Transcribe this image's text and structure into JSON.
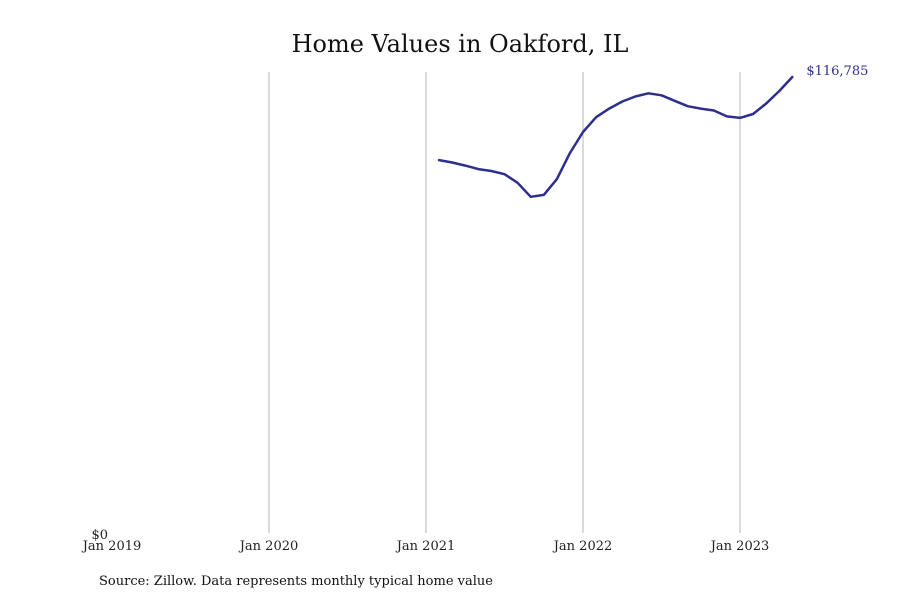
{
  "chart_data": {
    "type": "line",
    "title": "Home Values in Oakford, IL",
    "xlabel": "",
    "ylabel": "",
    "x_ticks": [
      "Jan 2019",
      "Jan 2020",
      "Jan 2021",
      "Jan 2022",
      "Jan 2023"
    ],
    "y_ticks": [
      "$0"
    ],
    "ylim": [
      0,
      116785
    ],
    "grid": "vertical",
    "series": [
      {
        "color": "#2e2e8f",
        "end_label": "$116,785",
        "points": [
          {
            "x": "2021-02",
            "y": 95500
          },
          {
            "x": "2021-03",
            "y": 94900
          },
          {
            "x": "2021-04",
            "y": 94100
          },
          {
            "x": "2021-05",
            "y": 93200
          },
          {
            "x": "2021-06",
            "y": 92700
          },
          {
            "x": "2021-07",
            "y": 91900
          },
          {
            "x": "2021-08",
            "y": 89700
          },
          {
            "x": "2021-09",
            "y": 86100
          },
          {
            "x": "2021-10",
            "y": 86600
          },
          {
            "x": "2021-11",
            "y": 90600
          },
          {
            "x": "2021-12",
            "y": 97300
          },
          {
            "x": "2022-01",
            "y": 102700
          },
          {
            "x": "2022-02",
            "y": 106500
          },
          {
            "x": "2022-03",
            "y": 108700
          },
          {
            "x": "2022-04",
            "y": 110500
          },
          {
            "x": "2022-05",
            "y": 111800
          },
          {
            "x": "2022-06",
            "y": 112600
          },
          {
            "x": "2022-07",
            "y": 112100
          },
          {
            "x": "2022-08",
            "y": 110700
          },
          {
            "x": "2022-09",
            "y": 109300
          },
          {
            "x": "2022-10",
            "y": 108700
          },
          {
            "x": "2022-11",
            "y": 108200
          },
          {
            "x": "2022-12",
            "y": 106700
          },
          {
            "x": "2023-01",
            "y": 106300
          },
          {
            "x": "2023-02",
            "y": 107300
          },
          {
            "x": "2023-03",
            "y": 110000
          },
          {
            "x": "2023-04",
            "y": 113200
          },
          {
            "x": "2023-05",
            "y": 116785
          }
        ]
      }
    ],
    "source": "Source: Zillow. Data represents monthly typical home value"
  }
}
